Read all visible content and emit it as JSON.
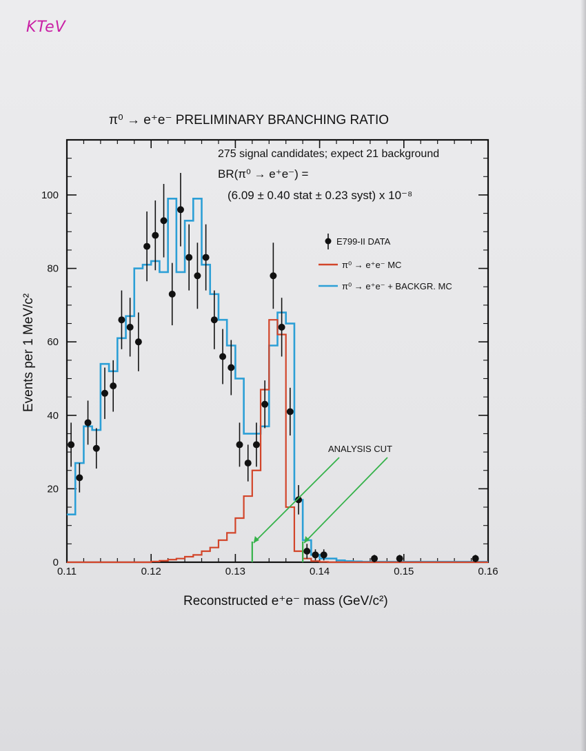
{
  "stamp": "KTeV",
  "chart_data": {
    "type": "histogram",
    "title": "π⁰ → e⁺e⁻ PRELIMINARY BRANCHING RATIO",
    "annotations": {
      "line1": "275 signal candidates; expect 21 background",
      "line2": "BR(π⁰ → e⁺e⁻) =",
      "line3": "(6.09 ± 0.40 stat ± 0.23 syst) x 10⁻⁸",
      "cut_label": "ANALYSIS CUT"
    },
    "xlabel": "Reconstructed e⁺e⁻ mass (GeV/c²)",
    "ylabel": "Events per 1 MeV/c²",
    "xlim": [
      0.11,
      0.16
    ],
    "ylim": [
      0,
      115
    ],
    "xticks": [
      0.11,
      0.12,
      0.13,
      0.14,
      0.15,
      0.16
    ],
    "xtick_labels": [
      "0.11",
      "0.12",
      "0.13",
      "0.14",
      "0.15",
      "0.16"
    ],
    "yticks": [
      0,
      20,
      40,
      60,
      80,
      100
    ],
    "ytick_labels": [
      "0",
      "20",
      "40",
      "60",
      "80",
      "100"
    ],
    "bin_width": 0.001,
    "cuts": [
      0.132,
      0.138
    ],
    "legend": {
      "position": "right",
      "items": [
        {
          "label": "E799-II DATA",
          "marker": "point",
          "color": "#111111"
        },
        {
          "label": "π⁰ → e⁺e⁻ MC",
          "marker": "line",
          "color": "#d2452a"
        },
        {
          "label": "π⁰ → e⁺e⁻ + BACKGR. MC",
          "marker": "line",
          "color": "#2c9fd6"
        }
      ]
    },
    "series": [
      {
        "name": "π⁰ → e⁺e⁻ + BACKGR. MC",
        "kind": "step",
        "color": "#2c9fd6",
        "bin_edges_start": 0.11,
        "values": [
          13,
          27,
          37,
          36,
          54,
          52,
          61,
          67,
          80,
          81,
          82,
          79,
          99,
          79,
          93,
          99,
          81,
          73,
          66,
          59,
          50,
          35,
          35,
          37,
          59,
          68,
          65,
          17,
          6,
          2,
          1,
          1,
          0.5,
          0.3,
          0.2,
          0.1,
          0.1,
          0.1,
          0.1,
          0.1,
          0.1,
          0.1,
          0.1,
          0.1,
          0.1,
          0.1,
          0.1,
          0.1,
          0.1,
          0.1
        ]
      },
      {
        "name": "π⁰ → e⁺e⁻ MC",
        "kind": "step",
        "color": "#d2452a",
        "bin_edges_start": 0.11,
        "values": [
          0,
          0,
          0,
          0,
          0,
          0,
          0,
          0,
          0,
          0,
          0.2,
          0.4,
          0.7,
          1,
          1.5,
          2,
          3,
          4,
          6,
          8,
          12,
          18,
          25,
          47,
          66,
          62,
          15,
          3,
          1,
          0.3,
          0.1,
          0,
          0,
          0,
          0,
          0,
          0,
          0,
          0,
          0,
          0,
          0,
          0,
          0,
          0,
          0,
          0,
          0,
          0,
          0
        ]
      },
      {
        "name": "E799-II DATA",
        "kind": "points",
        "color": "#111111",
        "x": [
          0.1105,
          0.1115,
          0.1125,
          0.1135,
          0.1145,
          0.1155,
          0.1165,
          0.1175,
          0.1185,
          0.1195,
          0.1205,
          0.1215,
          0.1225,
          0.1235,
          0.1245,
          0.1255,
          0.1265,
          0.1275,
          0.1285,
          0.1295,
          0.1305,
          0.1315,
          0.1325,
          0.1335,
          0.1345,
          0.1355,
          0.1365,
          0.1375,
          0.1385,
          0.1395,
          0.1405,
          0.1465,
          0.1495,
          0.1585
        ],
        "y": [
          32,
          23,
          38,
          31,
          46,
          48,
          66,
          64,
          60,
          86,
          89,
          93,
          73,
          96,
          83,
          78,
          83,
          66,
          56,
          53,
          32,
          27,
          32,
          43,
          78,
          64,
          41,
          17,
          3,
          2,
          2,
          1,
          1,
          1
        ],
        "yerr": [
          6,
          4,
          6,
          5.5,
          7,
          7,
          8,
          8,
          8,
          9.5,
          9.5,
          10,
          8.5,
          10,
          9,
          9,
          9,
          8,
          7.5,
          7.5,
          6,
          5,
          6,
          6.5,
          9,
          8,
          6.5,
          4,
          2,
          1.5,
          1.5,
          1,
          1,
          1
        ]
      }
    ]
  }
}
